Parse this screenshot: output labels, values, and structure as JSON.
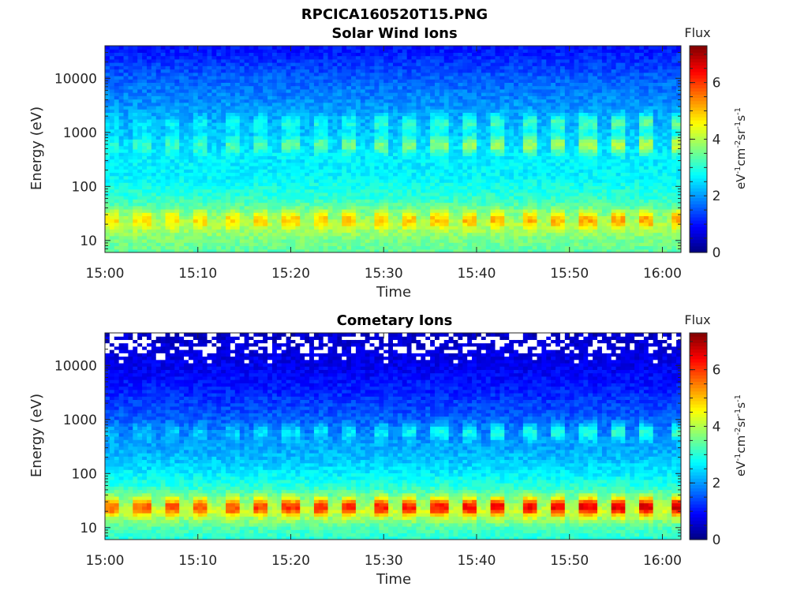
{
  "page": {
    "title": "RPCICA160520T15.PNG"
  },
  "chart_data": [
    {
      "type": "heatmap",
      "title": "Solar Wind Ions",
      "xlabel": "Time",
      "ylabel": "Energy (eV)",
      "y_scale": "log",
      "ylim": [
        6,
        40000
      ],
      "xlim": [
        "15:00",
        "16:02"
      ],
      "x_ticks": [
        "15:00",
        "15:10",
        "15:20",
        "15:30",
        "15:40",
        "15:50",
        "16:00"
      ],
      "y_ticks": [
        "10",
        "100",
        "1000",
        "10000"
      ],
      "colorbar": {
        "label": "Flux",
        "unit_label": "eV-1cm-2sr-1s-1",
        "range": [
          0,
          7.3
        ],
        "ticks": [
          "0",
          "2",
          "4",
          "6"
        ],
        "colormap": "jet"
      },
      "sweep_period_min": 3.2,
      "flux_profile": [
        {
          "energy_ev": 6,
          "flux": 3.4
        },
        {
          "energy_ev": 10,
          "flux": 3.6
        },
        {
          "energy_ev": 20,
          "flux": 4.0
        },
        {
          "energy_ev": 30,
          "flux": 3.7
        },
        {
          "energy_ev": 60,
          "flux": 3.1
        },
        {
          "energy_ev": 150,
          "flux": 2.7
        },
        {
          "energy_ev": 400,
          "flux": 2.6
        },
        {
          "energy_ev": 1000,
          "flux": 2.3
        },
        {
          "energy_ev": 3000,
          "flux": 2.0
        },
        {
          "energy_ev": 10000,
          "flux": 1.6
        },
        {
          "energy_ev": 40000,
          "flux": 1.0
        }
      ],
      "peaks": [
        {
          "energy_ev": 25,
          "flux": 5.0
        },
        {
          "energy_ev": 600,
          "flux": 3.9
        },
        {
          "energy_ev": 1500,
          "flux": 3.2
        }
      ],
      "white_gaps": false
    },
    {
      "type": "heatmap",
      "title": "Cometary Ions",
      "xlabel": "Time",
      "ylabel": "Energy (eV)",
      "y_scale": "log",
      "ylim": [
        6,
        40000
      ],
      "xlim": [
        "15:00",
        "16:02"
      ],
      "x_ticks": [
        "15:00",
        "15:10",
        "15:20",
        "15:30",
        "15:40",
        "15:50",
        "16:00"
      ],
      "y_ticks": [
        "10",
        "100",
        "1000",
        "10000"
      ],
      "colorbar": {
        "label": "Flux",
        "unit_label": "eV-1cm-2sr-1s-1",
        "range": [
          0,
          7.3
        ],
        "ticks": [
          "0",
          "2",
          "4",
          "6"
        ],
        "colormap": "jet"
      },
      "sweep_period_min": 3.2,
      "flux_profile": [
        {
          "energy_ev": 6,
          "flux": 3.0
        },
        {
          "energy_ev": 10,
          "flux": 3.3
        },
        {
          "energy_ev": 20,
          "flux": 4.2
        },
        {
          "energy_ev": 30,
          "flux": 3.8
        },
        {
          "energy_ev": 60,
          "flux": 3.0
        },
        {
          "energy_ev": 150,
          "flux": 2.4
        },
        {
          "energy_ev": 400,
          "flux": 2.0
        },
        {
          "energy_ev": 1000,
          "flux": 1.6
        },
        {
          "energy_ev": 3000,
          "flux": 1.2
        },
        {
          "energy_ev": 10000,
          "flux": 0.8
        },
        {
          "energy_ev": 40000,
          "flux": 0.5
        }
      ],
      "peaks": [
        {
          "energy_ev": 25,
          "flux": 6.3
        },
        {
          "energy_ev": 600,
          "flux": 2.9
        }
      ],
      "white_gaps": true
    }
  ]
}
